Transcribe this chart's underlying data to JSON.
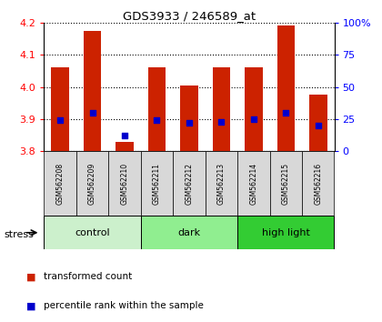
{
  "title": "GDS3933 / 246589_at",
  "samples": [
    "GSM562208",
    "GSM562209",
    "GSM562210",
    "GSM562211",
    "GSM562212",
    "GSM562213",
    "GSM562214",
    "GSM562215",
    "GSM562216"
  ],
  "transformed_count": [
    4.06,
    4.175,
    3.83,
    4.06,
    4.005,
    4.06,
    4.06,
    4.19,
    3.975
  ],
  "percentile_rank": [
    24,
    30,
    12,
    24,
    22,
    23,
    25,
    30,
    20
  ],
  "ylim_left": [
    3.8,
    4.2
  ],
  "ylim_right": [
    0,
    100
  ],
  "yticks_left": [
    3.8,
    3.9,
    4.0,
    4.1,
    4.2
  ],
  "yticks_right": [
    0,
    25,
    50,
    75,
    100
  ],
  "groups": [
    {
      "label": "control",
      "indices": [
        0,
        1,
        2
      ],
      "color": "#c8f0c8"
    },
    {
      "label": "dark",
      "indices": [
        3,
        4,
        5
      ],
      "color": "#90ee90"
    },
    {
      "label": "high light",
      "indices": [
        6,
        7,
        8
      ],
      "color": "#32cd32"
    }
  ],
  "bar_color": "#cc2200",
  "dot_color": "#0000cc",
  "stress_label": "stress",
  "legend": [
    {
      "label": "transformed count",
      "color": "#cc2200"
    },
    {
      "label": "percentile rank within the sample",
      "color": "#0000cc"
    }
  ],
  "bar_width": 0.55,
  "dot_size": 25,
  "sample_box_color": "#d8d8d8",
  "group_colors": [
    "#ccf0cc",
    "#90ee90",
    "#33cc33"
  ]
}
